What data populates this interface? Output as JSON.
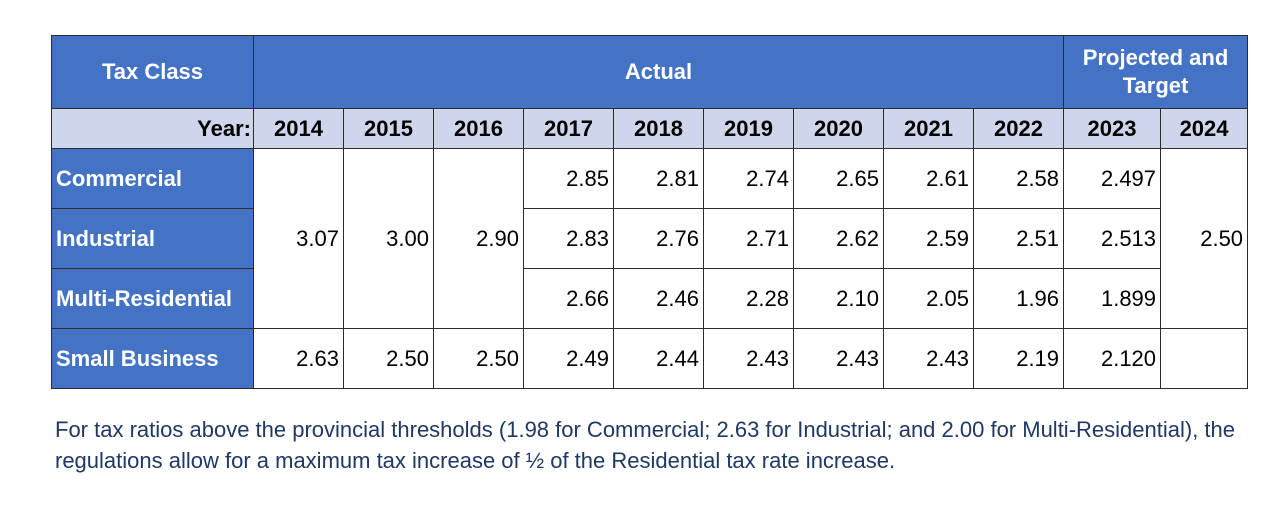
{
  "table": {
    "tax_class_header": "Tax Class",
    "actual_header": "Actual",
    "projected_header": "Projected and Target",
    "year_label": "Year:",
    "years": [
      "2014",
      "2015",
      "2016",
      "2017",
      "2018",
      "2019",
      "2020",
      "2021",
      "2022",
      "2023",
      "2024"
    ],
    "merged_2014_2016": [
      "3.07",
      "3.00",
      "2.90"
    ],
    "target_2024_merged": "2.50",
    "rows": [
      {
        "label": "Commercial",
        "values": [
          "2.85",
          "2.81",
          "2.74",
          "2.65",
          "2.61",
          "2.58",
          "2.497"
        ]
      },
      {
        "label": "Industrial",
        "values": [
          "2.83",
          "2.76",
          "2.71",
          "2.62",
          "2.59",
          "2.51",
          "2.513"
        ]
      },
      {
        "label": "Multi-Residential",
        "values": [
          "2.66",
          "2.46",
          "2.28",
          "2.10",
          "2.05",
          "1.96",
          "1.899"
        ]
      },
      {
        "label": "Small Business",
        "values": [
          "2.63",
          "2.50",
          "2.50",
          "2.49",
          "2.44",
          "2.43",
          "2.43",
          "2.43",
          "2.19",
          "2.120",
          ""
        ]
      }
    ]
  },
  "note": "For tax ratios above the provincial thresholds (1.98 for Commercial; 2.63 for Industrial; and 2.00 for Multi-Residential), the regulations allow for a maximum tax increase of ½ of the Residential tax rate increase.",
  "colors": {
    "header_blue": "#4472c4",
    "year_band": "#cfd5ea",
    "note_text": "#1f3864"
  }
}
